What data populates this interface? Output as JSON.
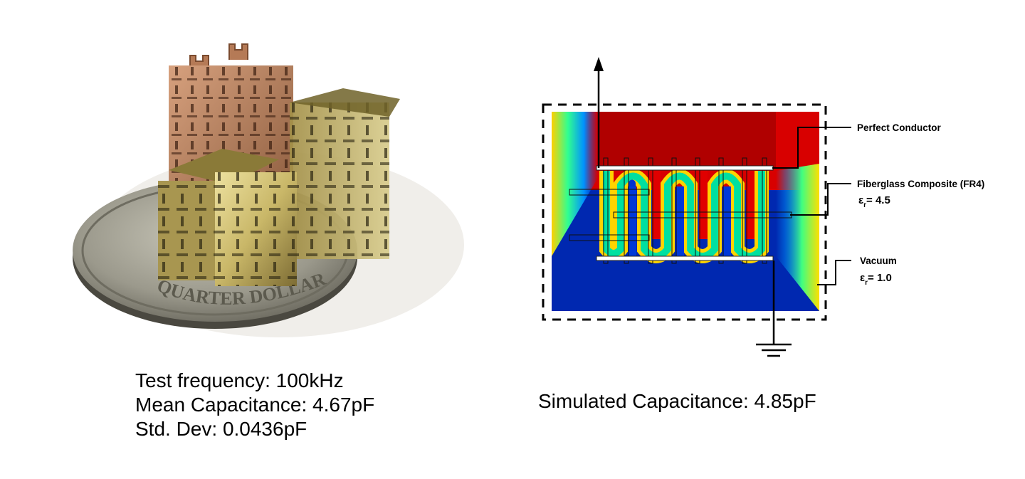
{
  "photo": {
    "coin_text": "QUARTER DOLLAR"
  },
  "photo_caption": {
    "line1": "Test frequency: 100kHz",
    "line2": "Mean Capacitance: 4.67pF",
    "line3": "Std. Dev: 0.0436pF"
  },
  "diagram": {
    "labels": {
      "conductor": "Perfect Conductor",
      "fr4": "Fiberglass Composite (FR4)",
      "fr4_eps_symbol": "ε",
      "fr4_eps_sub": "r",
      "fr4_eps_value": "= 4.5",
      "vacuum": "Vacuum",
      "vacuum_eps_symbol": "ε",
      "vacuum_eps_sub": "r",
      "vacuum_eps_value": "= 1.0"
    },
    "caption": "Simulated Capacitance: 4.85pF",
    "colors": {
      "field_high": "#d50000",
      "field_low": "#0025a8",
      "conductor": "#ffffff"
    }
  }
}
